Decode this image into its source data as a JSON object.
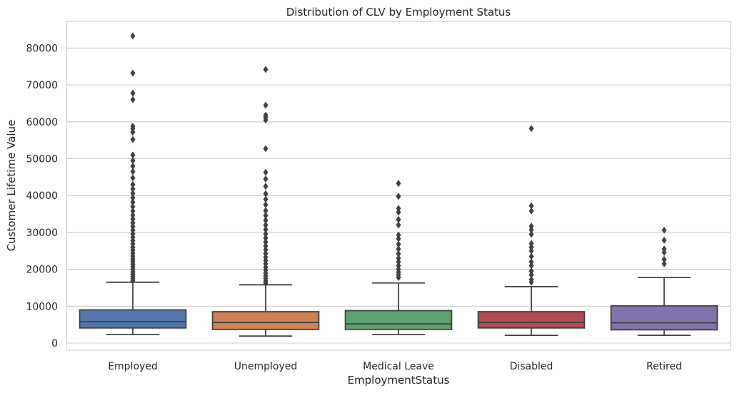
{
  "chart_data": {
    "type": "box",
    "title": "Distribution of CLV by Employment Status",
    "xlabel": "EmploymentStatus",
    "ylabel": "Customer Lifetime Value",
    "ylim": [
      -1800,
      87500
    ],
    "yticks": [
      0,
      10000,
      20000,
      30000,
      40000,
      50000,
      60000,
      70000,
      80000
    ],
    "ytick_labels": [
      "0",
      "10000",
      "20000",
      "30000",
      "40000",
      "50000",
      "60000",
      "70000",
      "80000"
    ],
    "grid": true,
    "categories": [
      "Employed",
      "Unemployed",
      "Medical Leave",
      "Disabled",
      "Retired"
    ],
    "colors": [
      "#5677ab",
      "#cf8257",
      "#60a06d",
      "#b44d52",
      "#8273ad"
    ],
    "boxes": [
      {
        "category": "Employed",
        "whisker_low": 2300,
        "q1": 4100,
        "median": 5800,
        "q3": 9000,
        "whisker_high": 16500,
        "outliers": [
          16900,
          17500,
          18100,
          18700,
          19300,
          20000,
          20700,
          21400,
          22100,
          22800,
          23600,
          24400,
          25200,
          26000,
          26900,
          27800,
          28700,
          29600,
          30600,
          31600,
          32600,
          33600,
          34700,
          35800,
          37000,
          38200,
          39400,
          40600,
          41800,
          43000,
          44800,
          46500,
          48000,
          49500,
          51000,
          55200,
          57200,
          58200,
          58800,
          66000,
          67800,
          73200,
          83300
        ]
      },
      {
        "category": "Unemployed",
        "whisker_low": 1900,
        "q1": 3700,
        "median": 5600,
        "q3": 8500,
        "whisker_high": 15800,
        "outliers": [
          16200,
          16800,
          17500,
          18200,
          19000,
          19800,
          20600,
          21500,
          22400,
          23300,
          24300,
          25300,
          26300,
          27400,
          28500,
          29600,
          30800,
          32000,
          33300,
          34600,
          35900,
          37500,
          39000,
          40500,
          42500,
          44500,
          46300,
          52700,
          60500,
          61200,
          61800,
          64500,
          74200
        ]
      },
      {
        "category": "Medical Leave",
        "whisker_low": 2300,
        "q1": 3700,
        "median": 5200,
        "q3": 8800,
        "whisker_high": 16300,
        "outliers": [
          17800,
          18500,
          19200,
          20000,
          21000,
          22000,
          23000,
          24200,
          25500,
          26800,
          28300,
          29300,
          32000,
          33500,
          35500,
          36500,
          39800,
          43300
        ]
      },
      {
        "category": "Disabled",
        "whisker_low": 2100,
        "q1": 4100,
        "median": 5600,
        "q3": 8500,
        "whisker_high": 15300,
        "outliers": [
          16500,
          17200,
          18500,
          19500,
          21000,
          22000,
          23500,
          25000,
          26000,
          27000,
          29500,
          30700,
          31700,
          35800,
          37200,
          58200
        ]
      },
      {
        "category": "Retired",
        "whisker_low": 2100,
        "q1": 3600,
        "median": 5500,
        "q3": 10100,
        "whisker_high": 17800,
        "outliers": [
          21500,
          22700,
          24600,
          25500,
          27900,
          30600
        ]
      }
    ],
    "box_edge_color": "#404040",
    "outlier_color": "#404040"
  }
}
